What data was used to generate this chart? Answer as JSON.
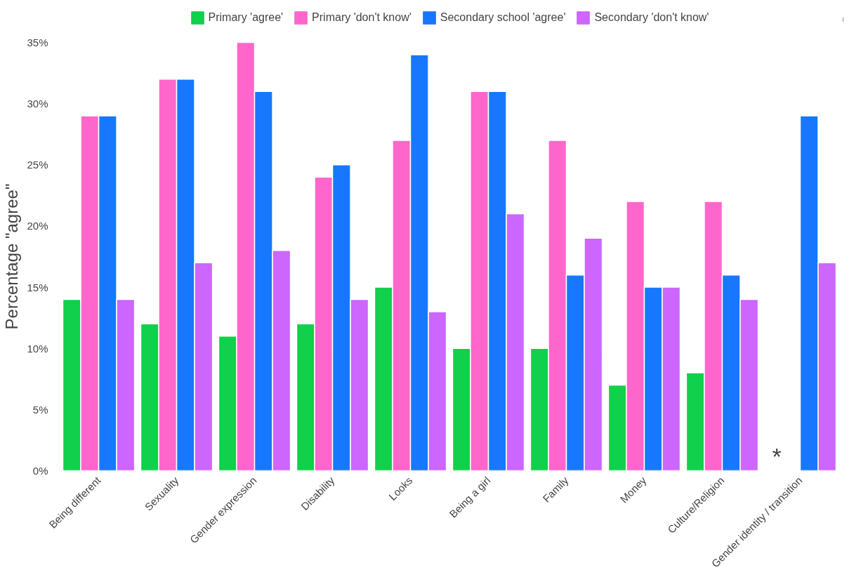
{
  "chart_data": {
    "type": "bar",
    "ylabel": "Percentage \"agree\"",
    "categories": [
      "Being different",
      "Sexuality",
      "Gender expression",
      "Disability",
      "Looks",
      "Being a girl",
      "Family",
      "Money",
      "Culture/Religion",
      "Gender identity / transition"
    ],
    "series": [
      {
        "name": "Primary 'agree'",
        "color": "#11d04b",
        "values": [
          14,
          12,
          11,
          12,
          15,
          10,
          10,
          7,
          8,
          null
        ]
      },
      {
        "name": "Primary 'don't know'",
        "color": "#ff66cc",
        "values": [
          29,
          32,
          35,
          24,
          27,
          31,
          27,
          22,
          22,
          null
        ]
      },
      {
        "name": "Secondary school 'agree'",
        "color": "#1877ff",
        "values": [
          29,
          32,
          31,
          25,
          34,
          31,
          16,
          15,
          16,
          29
        ]
      },
      {
        "name": "Secondary 'don't know'",
        "color": "#cc66ff",
        "values": [
          14,
          17,
          18,
          14,
          13,
          21,
          19,
          15,
          14,
          17
        ]
      }
    ],
    "ylim": [
      0,
      35
    ],
    "yticks": [
      {
        "value": 0,
        "label": "0%"
      },
      {
        "value": 5,
        "label": "5%"
      },
      {
        "value": 10,
        "label": "10%"
      },
      {
        "value": 15,
        "label": "15%"
      },
      {
        "value": 20,
        "label": "20%"
      },
      {
        "value": 25,
        "label": "25%"
      },
      {
        "value": 30,
        "label": "30%"
      },
      {
        "value": 35,
        "label": "35%"
      }
    ],
    "annotations": [
      {
        "text": "*",
        "x": "Gender identity / transition",
        "y": 0
      }
    ],
    "grid": false,
    "legend": "top"
  }
}
